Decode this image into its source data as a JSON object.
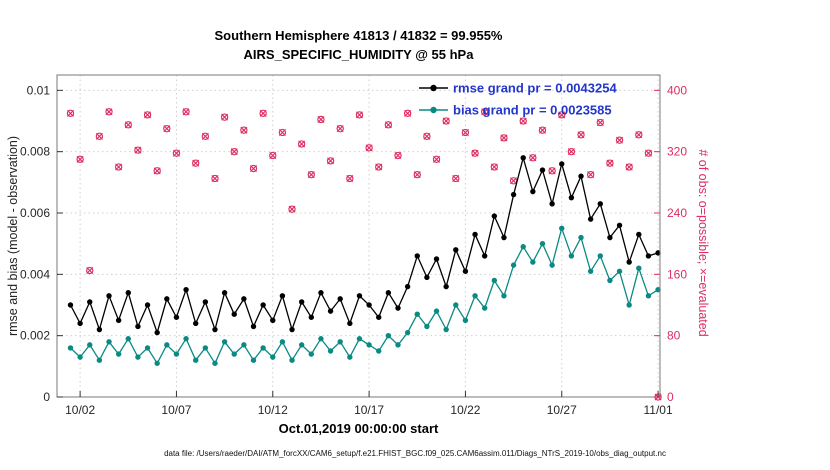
{
  "figure": {
    "title_line1": "Southern Hemisphere 41813 / 41832 = 99.955%",
    "title_line2": "AIRS_SPECIFIC_HUMIDITY @ 55 hPa",
    "xlabel": "Oct.01,2019 00:00:00 start",
    "ylabel_left": "rmse and bias (model - observation)",
    "ylabel_right": "# of obs: o=possible; ×=evaluated",
    "caption": "data file: /Users/raeder/DAI/ATM_forcXX/CAM6_setup/f.e21.FHIST_BGC.f09_025.CAM6assim.011/Diags_NTrS_2019-10/obs_diag_output.nc"
  },
  "legend": {
    "rmse_label": "rmse grand pr = 0.0043254",
    "bias_label": "bias grand pr = 0.0023585"
  },
  "colors": {
    "rmse": "#000000",
    "bias": "#0b8a84",
    "obs": "#de2d61",
    "legend_text": "#2336cc"
  },
  "chart_data": {
    "type": "line",
    "title": "Southern Hemisphere 41813 / 41832 = 99.955% | AIRS_SPECIFIC_HUMIDITY @ 55 hPa",
    "xlabel": "Oct.01,2019 00:00:00 start",
    "ylabel_left": "rmse and bias (model - observation)",
    "ylabel_right": "# of obs: o=possible; ×=evaluated",
    "grid": true,
    "legend_position": "top-right-inside",
    "x_range": [
      0.8,
      32.1
    ],
    "x_ticks": [
      {
        "day": 2,
        "label": "10/02"
      },
      {
        "day": 7,
        "label": "10/07"
      },
      {
        "day": 12,
        "label": "10/12"
      },
      {
        "day": 17,
        "label": "10/17"
      },
      {
        "day": 22,
        "label": "10/22"
      },
      {
        "day": 27,
        "label": "10/27"
      },
      {
        "day": 32,
        "label": "11/01"
      }
    ],
    "left_axis": {
      "min": 0,
      "max": 0.0105,
      "ticks": [
        0,
        0.002,
        0.004,
        0.006,
        0.008,
        0.01
      ]
    },
    "right_axis": {
      "min": 0,
      "max": 420,
      "ticks": [
        0,
        80,
        160,
        240,
        320,
        400
      ]
    },
    "x_days": [
      1.5,
      2,
      2.5,
      3,
      3.5,
      4,
      4.5,
      5,
      5.5,
      6,
      6.5,
      7,
      7.5,
      8,
      8.5,
      9,
      9.5,
      10,
      10.5,
      11,
      11.5,
      12,
      12.5,
      13,
      13.5,
      14,
      14.5,
      15,
      15.5,
      16,
      16.5,
      17,
      17.5,
      18,
      18.5,
      19,
      19.5,
      20,
      20.5,
      21,
      21.5,
      22,
      22.5,
      23,
      23.5,
      24,
      24.5,
      25,
      25.5,
      26,
      26.5,
      27,
      27.5,
      28,
      28.5,
      29,
      29.5,
      30,
      30.5,
      31,
      31.5,
      32
    ],
    "series": [
      {
        "name": "rmse",
        "axis": "left",
        "marker": "dot",
        "color": "#000000",
        "grand_mean": 0.0043254,
        "values": [
          0.003,
          0.0024,
          0.0031,
          0.0022,
          0.0033,
          0.0025,
          0.0034,
          0.0023,
          0.003,
          0.0021,
          0.0032,
          0.0026,
          0.0035,
          0.0024,
          0.0031,
          0.0022,
          0.0034,
          0.0027,
          0.0032,
          0.0023,
          0.003,
          0.0025,
          0.0033,
          0.0022,
          0.0031,
          0.0026,
          0.0034,
          0.0028,
          0.0032,
          0.0024,
          0.0033,
          0.003,
          0.0026,
          0.0034,
          0.0029,
          0.0036,
          0.0046,
          0.0039,
          0.0045,
          0.0036,
          0.0048,
          0.0041,
          0.0053,
          0.0046,
          0.0059,
          0.0052,
          0.0066,
          0.0078,
          0.0067,
          0.0074,
          0.0063,
          0.0076,
          0.0065,
          0.0072,
          0.0058,
          0.0063,
          0.0052,
          0.0056,
          0.0044,
          0.0053,
          0.0046,
          0.0047
        ]
      },
      {
        "name": "bias",
        "axis": "left",
        "marker": "dot",
        "color": "#0b8a84",
        "grand_mean": 0.0023585,
        "values": [
          0.0016,
          0.0013,
          0.0017,
          0.0012,
          0.0018,
          0.0014,
          0.0019,
          0.0013,
          0.0016,
          0.0011,
          0.0017,
          0.0014,
          0.0019,
          0.0012,
          0.0016,
          0.0011,
          0.0018,
          0.0014,
          0.0017,
          0.0012,
          0.0016,
          0.0013,
          0.0018,
          0.0012,
          0.0017,
          0.0014,
          0.0019,
          0.0015,
          0.0018,
          0.0013,
          0.0019,
          0.0017,
          0.0015,
          0.002,
          0.0017,
          0.0021,
          0.0027,
          0.0023,
          0.0028,
          0.0022,
          0.003,
          0.0025,
          0.0033,
          0.0029,
          0.0038,
          0.0033,
          0.0043,
          0.0049,
          0.0044,
          0.005,
          0.0043,
          0.0055,
          0.0046,
          0.0052,
          0.0041,
          0.0046,
          0.0038,
          0.0041,
          0.003,
          0.0042,
          0.0033,
          0.0035
        ]
      },
      {
        "name": "obs_count",
        "axis": "right",
        "marker": "circle-and-x",
        "color": "#de2d61",
        "values": [
          370,
          310,
          165,
          340,
          372,
          300,
          355,
          322,
          368,
          295,
          350,
          318,
          372,
          305,
          340,
          285,
          365,
          320,
          348,
          298,
          370,
          315,
          345,
          245,
          330,
          290,
          362,
          308,
          350,
          285,
          368,
          325,
          300,
          355,
          315,
          370,
          290,
          340,
          310,
          360,
          285,
          345,
          318,
          372,
          300,
          338,
          282,
          360,
          312,
          348,
          295,
          368,
          320,
          342,
          290,
          358,
          305,
          335,
          300,
          342,
          318,
          0
        ]
      }
    ]
  }
}
